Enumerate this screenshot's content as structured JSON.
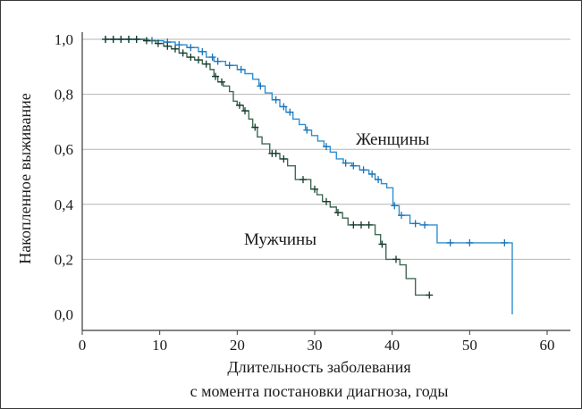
{
  "chart_data": {
    "type": "line",
    "xlabel": [
      "Длительность заболевания",
      "с момента постановки диагноза, годы"
    ],
    "ylabel": "Накопленное выживание",
    "xlim": [
      0,
      63
    ],
    "ylim": [
      0,
      1.0
    ],
    "x_ticks": [
      0,
      10,
      20,
      30,
      40,
      50,
      60
    ],
    "y_ticks": [
      "0,0",
      "0,2",
      "0,4",
      "0,6",
      "0,8",
      "1,0"
    ],
    "y_tick_values": [
      0,
      0.2,
      0.4,
      0.6,
      0.8,
      1.0
    ],
    "grid": "horizontal",
    "step": true,
    "series": [
      {
        "name": "Женщины",
        "color": "#2f8fd0",
        "censor_color": "#1a73b8",
        "steps": [
          [
            3,
            1.0
          ],
          [
            8.5,
            0.995
          ],
          [
            10.5,
            0.99
          ],
          [
            12,
            0.98
          ],
          [
            13.5,
            0.97
          ],
          [
            15,
            0.955
          ],
          [
            16,
            0.935
          ],
          [
            17,
            0.92
          ],
          [
            18.5,
            0.905
          ],
          [
            20,
            0.89
          ],
          [
            21,
            0.875
          ],
          [
            22,
            0.855
          ],
          [
            22.8,
            0.83
          ],
          [
            23.6,
            0.805
          ],
          [
            24.5,
            0.78
          ],
          [
            25.5,
            0.755
          ],
          [
            26.3,
            0.735
          ],
          [
            27.2,
            0.71
          ],
          [
            28,
            0.69
          ],
          [
            28.8,
            0.67
          ],
          [
            29.6,
            0.65
          ],
          [
            30.4,
            0.63
          ],
          [
            31.2,
            0.61
          ],
          [
            32,
            0.59
          ],
          [
            32.8,
            0.565
          ],
          [
            33.7,
            0.55
          ],
          [
            34.8,
            0.54
          ],
          [
            35.8,
            0.525
          ],
          [
            37,
            0.51
          ],
          [
            37.8,
            0.49
          ],
          [
            38.6,
            0.475
          ],
          [
            39.3,
            0.46
          ],
          [
            40.1,
            0.395
          ],
          [
            40.9,
            0.36
          ],
          [
            42.3,
            0.33
          ],
          [
            43.6,
            0.325
          ],
          [
            45.8,
            0.26
          ],
          [
            55.5,
            0.0
          ]
        ],
        "censored": [
          [
            3,
            1.0
          ],
          [
            4,
            1.0
          ],
          [
            5,
            1.0
          ],
          [
            6,
            1.0
          ],
          [
            7,
            1.0
          ],
          [
            9,
            0.995
          ],
          [
            11,
            0.99
          ],
          [
            12.5,
            0.98
          ],
          [
            14,
            0.97
          ],
          [
            15.5,
            0.955
          ],
          [
            16.8,
            0.935
          ],
          [
            17.5,
            0.92
          ],
          [
            19,
            0.905
          ],
          [
            20.5,
            0.89
          ],
          [
            23,
            0.83
          ],
          [
            25,
            0.78
          ],
          [
            26,
            0.755
          ],
          [
            26.8,
            0.735
          ],
          [
            29,
            0.67
          ],
          [
            31.5,
            0.61
          ],
          [
            34,
            0.55
          ],
          [
            35,
            0.54
          ],
          [
            36.3,
            0.525
          ],
          [
            37.4,
            0.51
          ],
          [
            38.2,
            0.49
          ],
          [
            40.3,
            0.395
          ],
          [
            41.2,
            0.36
          ],
          [
            43,
            0.33
          ],
          [
            44.2,
            0.325
          ],
          [
            47.5,
            0.26
          ],
          [
            50,
            0.26
          ],
          [
            54.5,
            0.26
          ]
        ]
      },
      {
        "name": "Мужчины",
        "color": "#3d6b54",
        "censor_color": "#173a2c",
        "steps": [
          [
            3,
            1.0
          ],
          [
            8,
            0.995
          ],
          [
            9.5,
            0.985
          ],
          [
            10.5,
            0.975
          ],
          [
            11.5,
            0.965
          ],
          [
            12.5,
            0.95
          ],
          [
            13.5,
            0.935
          ],
          [
            14.5,
            0.925
          ],
          [
            15.5,
            0.91
          ],
          [
            16.5,
            0.89
          ],
          [
            17,
            0.865
          ],
          [
            17.5,
            0.845
          ],
          [
            18.2,
            0.83
          ],
          [
            19,
            0.81
          ],
          [
            19.5,
            0.775
          ],
          [
            20,
            0.76
          ],
          [
            20.8,
            0.74
          ],
          [
            21.5,
            0.71
          ],
          [
            22,
            0.68
          ],
          [
            22.6,
            0.645
          ],
          [
            23.2,
            0.62
          ],
          [
            24.2,
            0.585
          ],
          [
            25.5,
            0.565
          ],
          [
            26.5,
            0.54
          ],
          [
            27.5,
            0.49
          ],
          [
            29.5,
            0.455
          ],
          [
            30.3,
            0.435
          ],
          [
            31,
            0.41
          ],
          [
            32,
            0.39
          ],
          [
            32.8,
            0.37
          ],
          [
            33.6,
            0.35
          ],
          [
            34.3,
            0.325
          ],
          [
            37.8,
            0.29
          ],
          [
            38.5,
            0.255
          ],
          [
            39.2,
            0.2
          ],
          [
            40.2,
            0.2
          ],
          [
            41,
            0.18
          ],
          [
            41.8,
            0.13
          ],
          [
            43,
            0.07
          ]
        ],
        "censored": [
          [
            3,
            1.0
          ],
          [
            4,
            1.0
          ],
          [
            5,
            1.0
          ],
          [
            6,
            1.0
          ],
          [
            7,
            1.0
          ],
          [
            8.3,
            0.995
          ],
          [
            9.8,
            0.985
          ],
          [
            11,
            0.975
          ],
          [
            12,
            0.965
          ],
          [
            13,
            0.95
          ],
          [
            14,
            0.935
          ],
          [
            15,
            0.925
          ],
          [
            16,
            0.91
          ],
          [
            17.2,
            0.865
          ],
          [
            18,
            0.845
          ],
          [
            20.3,
            0.76
          ],
          [
            21,
            0.74
          ],
          [
            22.3,
            0.68
          ],
          [
            24.5,
            0.585
          ],
          [
            25,
            0.585
          ],
          [
            26,
            0.565
          ],
          [
            28.5,
            0.49
          ],
          [
            30,
            0.455
          ],
          [
            31.5,
            0.41
          ],
          [
            33,
            0.37
          ],
          [
            35,
            0.325
          ],
          [
            36,
            0.325
          ],
          [
            37,
            0.325
          ],
          [
            38.7,
            0.255
          ],
          [
            40.5,
            0.2
          ],
          [
            44.8,
            0.07
          ]
        ]
      }
    ]
  }
}
